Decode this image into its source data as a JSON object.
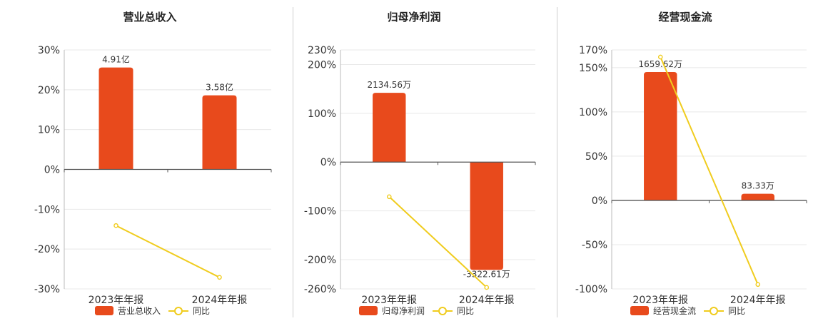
{
  "colors": {
    "bar": "#e84a1c",
    "line": "#f0cc1e",
    "grid": "#e8e8e8",
    "axis": "#555555",
    "text": "#333333"
  },
  "chart_data": [
    {
      "type": "bar",
      "title": "营业总收入",
      "categories": [
        "2023年年报",
        "2024年年报"
      ],
      "series": [
        {
          "name": "营业总收入",
          "type": "bar",
          "values": [
            25.6,
            18.6
          ],
          "labels": [
            "4.91亿",
            "3.58亿"
          ]
        },
        {
          "name": "同比",
          "type": "line",
          "values": [
            -14.1,
            -27.1
          ]
        }
      ],
      "yticks": [
        "30%",
        "20%",
        "10%",
        "0%",
        "-10%",
        "-20%",
        "-30%"
      ],
      "ylim": [
        -30,
        30
      ],
      "legend": "bottom"
    },
    {
      "type": "bar",
      "title": "归母净利润",
      "categories": [
        "2023年年报",
        "2024年年报"
      ],
      "series": [
        {
          "name": "归母净利润",
          "type": "bar",
          "values": [
            142,
            -221
          ],
          "labels": [
            "2134.56万",
            "-3322.61万"
          ]
        },
        {
          "name": "同比",
          "type": "line",
          "values": [
            -71,
            -257
          ]
        }
      ],
      "yticks": [
        "230%",
        "200%",
        "100%",
        "0%",
        "-100%",
        "-200%",
        "-260%"
      ],
      "ylim": [
        -260,
        230
      ],
      "legend": "bottom"
    },
    {
      "type": "bar",
      "title": "经营现金流",
      "categories": [
        "2023年年报",
        "2024年年报"
      ],
      "series": [
        {
          "name": "经营现金流",
          "type": "bar",
          "values": [
            145,
            7.5
          ],
          "labels": [
            "1659.62万",
            "83.33万"
          ]
        },
        {
          "name": "同比",
          "type": "line",
          "values": [
            162,
            -95
          ]
        }
      ],
      "yticks": [
        "170%",
        "150%",
        "100%",
        "50%",
        "0%",
        "-50%",
        "-100%"
      ],
      "ylim": [
        -100,
        170
      ],
      "legend": "bottom"
    }
  ]
}
